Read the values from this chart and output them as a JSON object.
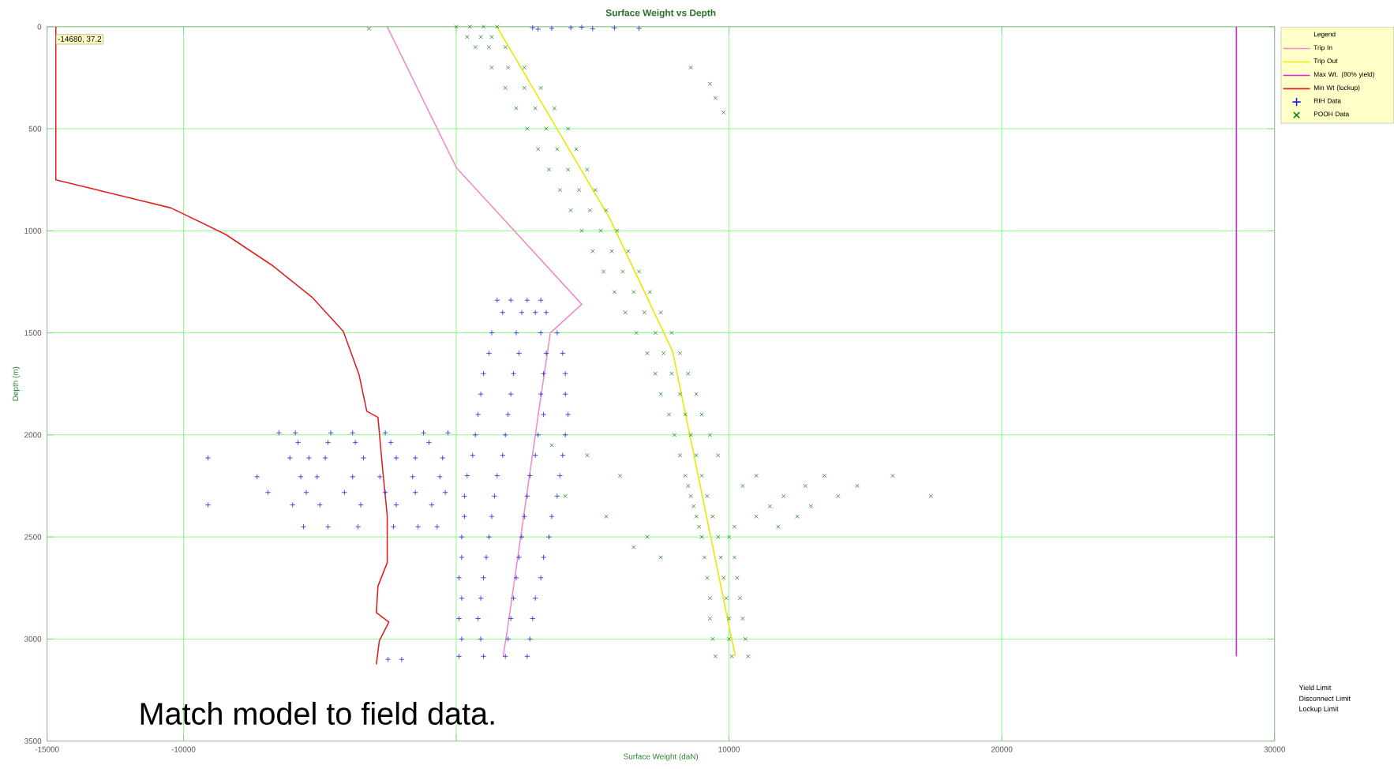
{
  "chart_data": {
    "type": "scatter",
    "title": "Surface Weight vs Depth",
    "xlabel": "Surface Weight (daN)",
    "ylabel": "Depth (m)",
    "legend_title": "Legend",
    "xlim": [
      -15000,
      30000
    ],
    "ylim": [
      3500,
      0
    ],
    "xticks": [
      -15000,
      -10000,
      {
        "value": 0,
        "label": null
      },
      10000,
      20000,
      30000
    ],
    "yticks": [
      0,
      500,
      1000,
      1500,
      2000,
      2500,
      3000,
      3500
    ],
    "grid": true,
    "legend": "right",
    "annotations": [
      {
        "text": "-14680, 37.2",
        "x": -14680,
        "y": 37.2
      },
      "Match model to field data.",
      "Yield Limit",
      "Disconnect Limit",
      "Lockup Limit"
    ],
    "series": [
      {
        "name": "Trip In",
        "type": "line",
        "color": "#f08cc8",
        "x": [
          -2530,
          0,
          4600,
          3450,
          3050,
          2470,
          1900,
          1720
        ],
        "values": [
          0,
          690,
          1360,
          1500,
          1860,
          2400,
          2930,
          3085
        ]
      },
      {
        "name": "Trip Out",
        "type": "line",
        "color": "#e8e800",
        "x": [
          1490,
          5630,
          7930,
          10230
        ],
        "values": [
          0,
          940,
          1590,
          3085
        ]
      },
      {
        "name": "Max Wt. (80% yield)",
        "type": "line",
        "color": "#e020e0",
        "x": [
          28600,
          28600
        ],
        "values": [
          0,
          3085
        ]
      },
      {
        "name": "Min Wt (lockup)",
        "type": "line",
        "color": "#e02020",
        "x": [
          -14680,
          -14680,
          -10460,
          -8450,
          -6720,
          -5290,
          -4140,
          -3560,
          -3280,
          -2870,
          -2700,
          -2530,
          -2530,
          -2870,
          -2930,
          -2470,
          -2820,
          -2930
        ],
        "values": [
          0,
          750,
          888,
          1018,
          1172,
          1325,
          1493,
          1707,
          1884,
          1914,
          2167,
          2397,
          2626,
          2741,
          2871,
          2917,
          3009,
          3124
        ]
      },
      {
        "name": "RIH Data",
        "type": "scatter",
        "marker": "plus",
        "color": "#2020e0",
        "x": [
          2800,
          3500,
          4200,
          5000,
          5800,
          6700,
          3000,
          4600,
          1500,
          2000,
          2600,
          3100,
          1700,
          2400,
          2900,
          3300,
          1300,
          2200,
          3100,
          3700,
          1200,
          2300,
          3300,
          3900,
          1000,
          2100,
          3200,
          4000,
          900,
          2000,
          3100,
          4000,
          800,
          1900,
          3200,
          4100,
          700,
          1800,
          3000,
          4000,
          600,
          1700,
          2900,
          3900,
          400,
          1500,
          2700,
          3800,
          300,
          1400,
          2600,
          3700,
          300,
          1300,
          2500,
          3500,
          200,
          1200,
          2400,
          3400,
          200,
          1100,
          2300,
          3200,
          100,
          1000,
          2200,
          3100,
          200,
          900,
          2100,
          2900,
          100,
          800,
          2000,
          2800,
          200,
          900,
          1900,
          2700,
          100,
          1000,
          1800,
          2600,
          -6500,
          -5900,
          -4600,
          -3800,
          -2600,
          -1200,
          -300,
          -5800,
          -4700,
          -3700,
          -2400,
          -1000,
          -9100,
          -6100,
          -5400,
          -4800,
          -3400,
          -2200,
          -1500,
          -500,
          -7300,
          -5700,
          -5100,
          -3800,
          -2800,
          -1600,
          -600,
          -6900,
          -5500,
          -4100,
          -2600,
          -1500,
          -400,
          -9100,
          -6000,
          -5000,
          -3500,
          -2200,
          -900,
          -5600,
          -4700,
          -3600,
          -2300,
          -1400,
          -700,
          -2500,
          -2000
        ],
        "values": [
          5,
          8,
          5,
          10,
          6,
          8,
          12,
          3,
          1340,
          1340,
          1340,
          1340,
          1400,
          1400,
          1400,
          1400,
          1500,
          1500,
          1500,
          1500,
          1600,
          1600,
          1600,
          1600,
          1700,
          1700,
          1700,
          1700,
          1800,
          1800,
          1800,
          1800,
          1900,
          1900,
          1900,
          1900,
          2000,
          2000,
          2000,
          2000,
          2100,
          2100,
          2100,
          2100,
          2200,
          2200,
          2200,
          2200,
          2300,
          2300,
          2300,
          2300,
          2400,
          2400,
          2400,
          2400,
          2500,
          2500,
          2500,
          2500,
          2600,
          2600,
          2600,
          2600,
          2700,
          2700,
          2700,
          2700,
          2800,
          2800,
          2800,
          2800,
          2900,
          2900,
          2900,
          2900,
          3000,
          3000,
          3000,
          3000,
          3085,
          3085,
          3085,
          3085,
          1990,
          1990,
          1990,
          1990,
          1990,
          1990,
          1990,
          2037,
          2037,
          2037,
          2037,
          2037,
          2113,
          2113,
          2113,
          2113,
          2113,
          2113,
          2113,
          2113,
          2205,
          2205,
          2205,
          2205,
          2205,
          2205,
          2205,
          2282,
          2282,
          2282,
          2282,
          2282,
          2282,
          2343,
          2343,
          2343,
          2343,
          2343,
          2343,
          2450,
          2450,
          2450,
          2450,
          2450,
          2450,
          3100,
          3100
        ]
      },
      {
        "name": "POOH Data",
        "type": "scatter",
        "marker": "cross",
        "color": "#108010",
        "x": [
          0,
          500,
          1000,
          1500,
          400,
          900,
          1300,
          700,
          1200,
          1800,
          1300,
          1900,
          2500,
          1800,
          2500,
          3100,
          2200,
          2900,
          3600,
          2600,
          3300,
          4100,
          3000,
          3700,
          4400,
          3400,
          4100,
          4800,
          3800,
          4500,
          5100,
          4200,
          4900,
          5500,
          4600,
          5300,
          5900,
          5000,
          5700,
          6300,
          5400,
          6100,
          6700,
          5800,
          6500,
          7100,
          6200,
          6900,
          7500,
          6600,
          7300,
          7900,
          7000,
          7600,
          8200,
          7300,
          7900,
          8500,
          7500,
          8200,
          8800,
          7800,
          8400,
          9000,
          8000,
          8600,
          9300,
          8200,
          8800,
          9600,
          8400,
          9000,
          11000,
          13500,
          16000,
          8500,
          10500,
          12800,
          14700,
          8600,
          9200,
          12000,
          14000,
          17400,
          8700,
          11500,
          13000,
          8800,
          9400,
          11000,
          12500,
          8900,
          10200,
          11800,
          9000,
          9600,
          9100,
          9700,
          10200,
          9200,
          9800,
          10300,
          9300,
          9900,
          10400,
          9300,
          10000,
          10500,
          9400,
          10000,
          10600,
          9500,
          10100,
          10700,
          9300,
          9500,
          9800,
          8600,
          -3200,
          3500,
          4800,
          6000,
          4000,
          5500,
          7000,
          6500,
          7500,
          10000
        ],
        "values": [
          0,
          0,
          0,
          0,
          50,
          50,
          50,
          100,
          100,
          100,
          200,
          200,
          200,
          300,
          300,
          300,
          400,
          400,
          400,
          500,
          500,
          500,
          600,
          600,
          600,
          700,
          700,
          700,
          800,
          800,
          800,
          900,
          900,
          900,
          1000,
          1000,
          1000,
          1100,
          1100,
          1100,
          1200,
          1200,
          1200,
          1300,
          1300,
          1300,
          1400,
          1400,
          1400,
          1500,
          1500,
          1500,
          1600,
          1600,
          1600,
          1700,
          1700,
          1700,
          1800,
          1800,
          1800,
          1900,
          1900,
          1900,
          2000,
          2000,
          2000,
          2100,
          2100,
          2100,
          2200,
          2200,
          2200,
          2200,
          2200,
          2250,
          2250,
          2250,
          2250,
          2300,
          2300,
          2300,
          2300,
          2300,
          2350,
          2350,
          2350,
          2400,
          2400,
          2400,
          2400,
          2450,
          2450,
          2450,
          2500,
          2500,
          2600,
          2600,
          2600,
          2700,
          2700,
          2700,
          2800,
          2800,
          2800,
          2900,
          2900,
          2900,
          3000,
          3000,
          3000,
          3085,
          3085,
          3085,
          280,
          350,
          420,
          200,
          10,
          2050,
          2100,
          2200,
          2300,
          2400,
          2500,
          2550,
          2600,
          2500
        ]
      }
    ]
  }
}
